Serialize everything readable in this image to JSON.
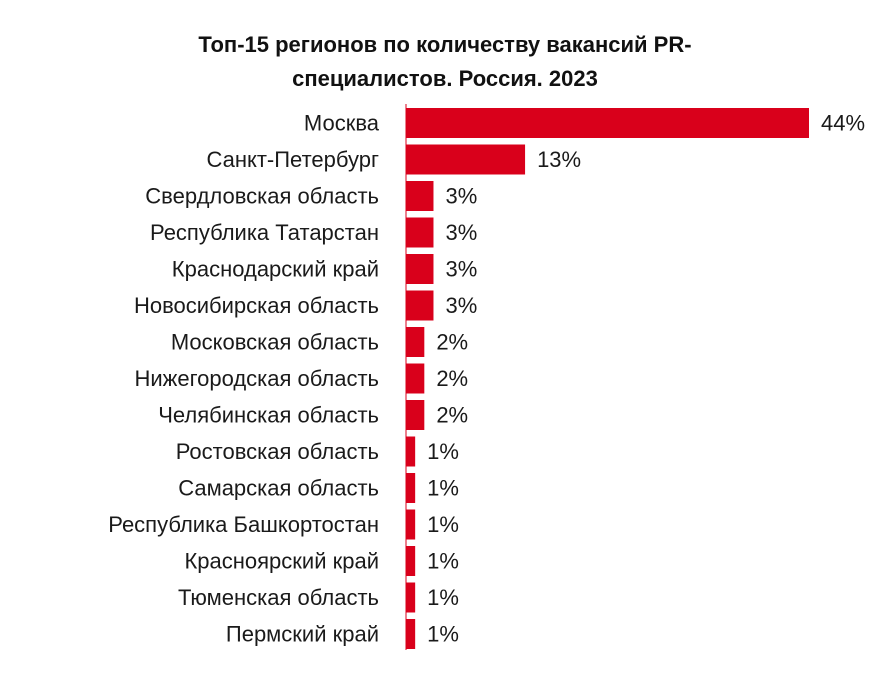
{
  "chart_data": {
    "type": "bar",
    "orientation": "horizontal",
    "title_lines": [
      "Топ-15 регионов по количеству вакансий PR-",
      "специалистов. Россия.  2023"
    ],
    "categories": [
      "Москва",
      "Санкт-Петербург",
      "Свердловская область",
      "Республика Татарстан",
      "Краснодарский край",
      "Новосибирская область",
      "Московская область",
      "Нижегородская область",
      "Челябинская область",
      "Ростовская область",
      "Самарская область",
      "Республика Башкортостан",
      "Красноярский край",
      "Тюменская область",
      "Пермский край"
    ],
    "values": [
      44,
      13,
      3,
      3,
      3,
      3,
      2,
      2,
      2,
      1,
      1,
      1,
      1,
      1,
      1
    ],
    "value_labels": [
      "44%",
      "13%",
      "3%",
      "3%",
      "3%",
      "3%",
      "2%",
      "2%",
      "2%",
      "1%",
      "1%",
      "1%",
      "1%",
      "1%",
      "1%"
    ],
    "unit": "%",
    "xlim": [
      0,
      44
    ],
    "grid": false,
    "legend": "none",
    "bar_color": "#d9001b"
  }
}
